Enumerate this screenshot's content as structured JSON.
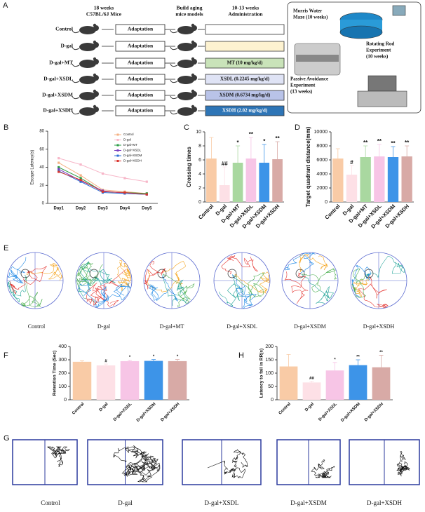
{
  "panel_letters": [
    "A",
    "B",
    "C",
    "D",
    "E",
    "F",
    "H",
    "G"
  ],
  "schematic": {
    "headers": [
      [
        "18 weeks",
        "C57BL/6J Mice"
      ],
      [
        "Build aging",
        "mice models"
      ],
      [
        "10-13 weeks",
        "Administration"
      ]
    ],
    "groups": [
      "Control",
      "D-gal",
      "D-gal+MT",
      "D-gal+XSDL",
      "D-gal+XSDM",
      "D-gal+XSDH"
    ],
    "step": "Adaptation",
    "administration": [
      null,
      null,
      "MT (10 mg/kg/d)",
      "XSDL (0.2245 mg/kg/d)",
      "XSDM (0.6734 mg/kg/d)",
      "XSDH (2.02 mg/kg/d)"
    ],
    "experiments": [
      [
        "Morris Water",
        "Maze (10 weeks)"
      ],
      [
        "Rotating Rod",
        "Experiment",
        "(10 weeks)"
      ],
      [
        "Passive Avoidance",
        "Experiment",
        "(13 weeks)"
      ]
    ]
  },
  "chart_data": [
    {
      "type": "line",
      "ylabel": "Escape Latency(s)",
      "categories": [
        "Day1",
        "Day2",
        "Day3",
        "Day4",
        "Day5"
      ],
      "ylim": [
        0,
        80
      ],
      "yticks": [
        0,
        20,
        40,
        60,
        80
      ],
      "series": [
        {
          "name": "Control",
          "color": "#f4b183",
          "values": [
            45,
            31,
            15,
            13,
            11
          ]
        },
        {
          "name": "D-gal",
          "color": "#f7b6c8",
          "values": [
            50,
            43,
            33,
            28,
            24
          ]
        },
        {
          "name": "D-gal+MT",
          "color": "#2e9e48",
          "values": [
            40,
            28,
            13,
            12,
            11
          ]
        },
        {
          "name": "D-gal+XSDL",
          "color": "#7b3fbf",
          "values": [
            38,
            25,
            14,
            11,
            10
          ]
        },
        {
          "name": "D-gal+XSDM",
          "color": "#2f6fd6",
          "values": [
            36,
            24,
            12,
            11,
            10
          ]
        },
        {
          "name": "D-gal+XSDH",
          "color": "#d9362f",
          "values": [
            35,
            26,
            13,
            12,
            10
          ]
        }
      ]
    },
    {
      "type": "bar",
      "ylabel": "Crossing times",
      "categories": [
        "Control",
        "D-gal",
        "D-gal+MT",
        "D-gal+XSDL",
        "D-gal+XSDM",
        "D-gal+XSDH"
      ],
      "values": [
        6.2,
        2.4,
        5.6,
        6.2,
        5.6,
        6.1
      ],
      "errors": [
        3.0,
        2.6,
        2.4,
        3.0,
        2.6,
        2.5
      ],
      "annotations": [
        null,
        "##",
        "*",
        "**",
        "*",
        "**"
      ],
      "colors": [
        "#f9cba6",
        "#fde0e6",
        "#a9d8a0",
        "#f7c5e6",
        "#3d94e8",
        "#d8aaa6"
      ],
      "ylim": [
        0,
        10
      ],
      "yticks": [
        0,
        2,
        4,
        6,
        8,
        10
      ]
    },
    {
      "type": "bar",
      "ylabel": "Target quadrant distance(mm)",
      "categories": [
        "Control",
        "D-gal",
        "D-gal+MT",
        "D-gal+XSDL",
        "D-gal+XSDM",
        "D-gal+XSDH"
      ],
      "values": [
        6200,
        3900,
        6400,
        6500,
        6400,
        6500
      ],
      "errors": [
        1400,
        1300,
        1600,
        1700,
        1500,
        1500
      ],
      "annotations": [
        null,
        "#",
        "**",
        "**",
        "**",
        "**"
      ],
      "colors": [
        "#f9cba6",
        "#fde0e6",
        "#a9d8a0",
        "#f7c5e6",
        "#3d94e8",
        "#d8aaa6"
      ],
      "ylim": [
        0,
        10000
      ],
      "yticks": [
        0,
        2000,
        4000,
        6000,
        8000,
        10000
      ]
    },
    {
      "type": "bar",
      "ylabel": "Retention Time (Sec)",
      "categories": [
        "Control",
        "D-gal",
        "D-gal+XSDL",
        "D-gal+XSDM",
        "D-gal+XSDH"
      ],
      "values": [
        285,
        258,
        290,
        292,
        290
      ],
      "errors": [
        8,
        10,
        8,
        10,
        12
      ],
      "annotations": [
        null,
        "#",
        "*",
        "*",
        "*"
      ],
      "colors": [
        "#f9cba6",
        "#fde0e6",
        "#f7c5e6",
        "#3d94e8",
        "#d8aaa6"
      ],
      "ylim": [
        0,
        400
      ],
      "yticks": [
        0,
        100,
        200,
        300,
        400
      ]
    },
    {
      "type": "bar",
      "ylabel": "Latency to fall in RR(s)",
      "categories": [
        "Control",
        "D-gal",
        "D-gal+XSDL",
        "D-gal+XSDM",
        "D-gal+XSDH"
      ],
      "values": [
        125,
        65,
        110,
        130,
        122
      ],
      "errors": [
        45,
        5,
        30,
        20,
        45
      ],
      "annotations": [
        null,
        "##",
        "*",
        "**",
        "**"
      ],
      "colors": [
        "#f9cba6",
        "#fde0e6",
        "#f7c5e6",
        "#3d94e8",
        "#d8aaa6"
      ],
      "ylim": [
        0,
        200
      ],
      "yticks": [
        0,
        50,
        100,
        150,
        200
      ]
    }
  ],
  "track_plots": {
    "E": [
      "Control",
      "D-gal",
      "D-gal+MT",
      "D-gal+XSDL",
      "D-gal+XSDM",
      "D-gal+XSDH"
    ],
    "G": [
      "Control",
      "D-gal",
      "D-gal+XSDL",
      "D-gal+XSDM",
      "D-gal+XSDH"
    ]
  }
}
